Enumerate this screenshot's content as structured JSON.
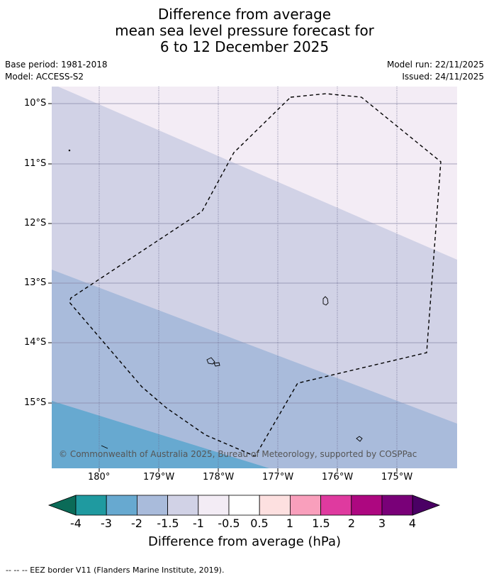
{
  "title": {
    "line1": "Difference from average",
    "line2": "mean sea level pressure forecast for",
    "line3": "6 to 12 December 2025"
  },
  "meta": {
    "base_period": "Base period: 1981-2018",
    "model": "Model: ACCESS-S2",
    "model_run": "Model run: 22/11/2025",
    "issued": "Issued: 24/11/2025"
  },
  "axes": {
    "lat_labels": [
      "10°S",
      "11°S",
      "12°S",
      "13°S",
      "14°S",
      "15°S"
    ],
    "lon_labels": [
      "180°",
      "179°W",
      "178°W",
      "177°W",
      "176°W",
      "175°W"
    ]
  },
  "copyright": "© Commonwealth of Australia 2025, Bureau of Meteorology, supported by COSPPac",
  "colorbar": {
    "title": "Difference from average (hPa)",
    "labels": [
      "-4",
      "-3",
      "-2",
      "-1.5",
      "-1",
      "-0.5",
      "0.5",
      "1",
      "1.5",
      "2",
      "3",
      "4"
    ],
    "colors": {
      "lt_minus4": "#0b6b58",
      "m4_m3": "#1f9aa0",
      "m3_m2": "#67a9d0",
      "m2_m1_5": "#a9bbdb",
      "m1_5_m1": "#d1d2e6",
      "m1_m0_5": "#f3ecf5",
      "m0_5_0_5": "#ffffff",
      "p0_5_1": "#fde0e0",
      "p1_1_5": "#f99fbc",
      "p1_5_2": "#df3a9f",
      "p2_3": "#ad0780",
      "p3_4": "#790078",
      "gt_4": "#4a0064"
    }
  },
  "footer": "--  --  -- EEZ border V11 (Flanders Marine Institute, 2019)."
}
